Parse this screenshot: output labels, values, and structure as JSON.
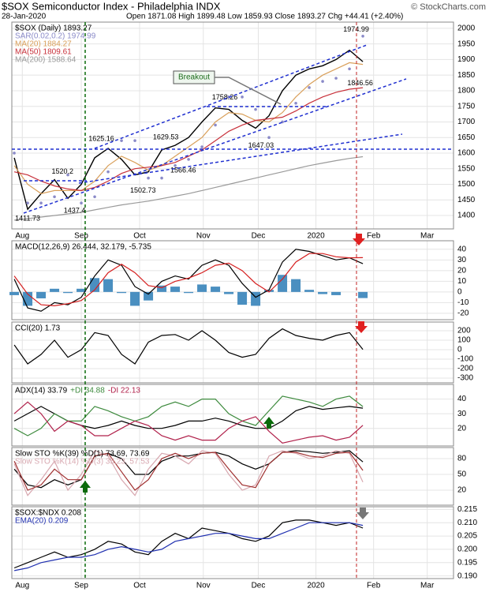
{
  "header": {
    "title": "$SOX Semiconductor Index - Philadelphia INDX",
    "source": "© StockCharts.com",
    "date": "28-Jan-2020",
    "ohlc": "Open 1871.08 High 1899.48 Low 1859.93 Close 1893.27 Chg +44.41 (+2.40%)"
  },
  "breakout": "Breakout",
  "chart_data": [
    {
      "type": "line",
      "legend_layout": "stacked",
      "xlim": [
        -0.18,
        32.76
      ],
      "xticks": [
        {
          "value": 0.6,
          "label": "Aug"
        },
        {
          "value": 5.0,
          "label": "Sep"
        },
        {
          "value": 9.35,
          "label": "Oct"
        },
        {
          "value": 14.1,
          "label": "Nov"
        },
        {
          "value": 18.2,
          "label": "Dec"
        },
        {
          "value": 22.5,
          "label": "2020"
        },
        {
          "value": 26.8,
          "label": "Feb"
        },
        {
          "value": 30.8,
          "label": "Mar"
        }
      ],
      "ylim": [
        1357,
        2020
      ],
      "yticks": [
        1400,
        1450,
        1500,
        1550,
        1600,
        1650,
        1700,
        1750,
        1800,
        1850,
        1900,
        1950,
        2000
      ],
      "series": [
        {
          "name": "$SOX (Daily) 1893.27",
          "color": "#000000",
          "values": [
            1585,
            1420,
            1470,
            1515,
            1455,
            1500,
            1585,
            1615,
            1580,
            1530,
            1540,
            1610,
            1625,
            1650,
            1700,
            1745,
            1740,
            1705,
            1680,
            1720,
            1800,
            1850,
            1870,
            1880,
            1900,
            1930,
            1893.27
          ]
        },
        {
          "name": "SAR(0.02,0.2) 1974.99",
          "type": "dots",
          "color": "#8a8ac8",
          "values": [
            1600,
            1440,
            1440,
            1460,
            1530,
            1440,
            1460,
            1540,
            1640,
            1640,
            1520,
            1520,
            1560,
            1580,
            1620,
            1690,
            1780,
            1780,
            1740,
            1650,
            1700,
            1760,
            1810,
            1830,
            1840,
            1870,
            1974.99
          ]
        },
        {
          "name": "MA(20) 1884.27",
          "color": "#d9a05b",
          "values": [
            1560,
            1500,
            1470,
            1480,
            1480,
            1480,
            1510,
            1560,
            1590,
            1570,
            1545,
            1560,
            1590,
            1620,
            1650,
            1700,
            1730,
            1725,
            1705,
            1700,
            1730,
            1780,
            1820,
            1850,
            1870,
            1890,
            1884.27
          ]
        },
        {
          "name": "MA(50) 1809.61",
          "color": "#c8303a",
          "values": [
            1540,
            1530,
            1510,
            1495,
            1485,
            1480,
            1490,
            1510,
            1535,
            1550,
            1555,
            1560,
            1570,
            1590,
            1610,
            1640,
            1670,
            1690,
            1705,
            1710,
            1715,
            1735,
            1760,
            1780,
            1795,
            1805,
            1809.61
          ]
        },
        {
          "name": "MA(200) 1588.64",
          "color": "#9a9a9a",
          "values": [
            1385,
            1390,
            1395,
            1400,
            1405,
            1410,
            1418,
            1426,
            1434,
            1440,
            1446,
            1454,
            1462,
            1470,
            1480,
            1490,
            1500,
            1510,
            1520,
            1530,
            1540,
            1550,
            1560,
            1568,
            1576,
            1583,
            1588.64
          ]
        }
      ],
      "annotations": [
        {
          "x": 1,
          "value": 1411.73,
          "side": "below"
        },
        {
          "x": 4.5,
          "value": 1437.4,
          "side": "below"
        },
        {
          "x": 3.6,
          "value": 1520.2,
          "side": "above"
        },
        {
          "x": 6.5,
          "value": 1625.16,
          "side": "above"
        },
        {
          "x": 9.6,
          "value": 1502.73,
          "side": "below"
        },
        {
          "x": 11.3,
          "value": 1629.53,
          "side": "above"
        },
        {
          "x": 12.6,
          "value": 1566.46,
          "side": "below"
        },
        {
          "x": 15.7,
          "value": 1758.26,
          "side": "above"
        },
        {
          "x": 18.4,
          "value": 1647.03,
          "side": "below"
        },
        {
          "x": 25.5,
          "value": 1974.99,
          "side": "above"
        },
        {
          "x": 25.8,
          "value": 1846.56,
          "side": "below"
        }
      ]
    },
    {
      "type": "line",
      "title": "MACD(12,26,9) 26.444, 32.179, -5.735",
      "ylim": [
        -26,
        48
      ],
      "yticks": [
        40,
        30,
        20,
        10,
        0,
        -10,
        -20
      ],
      "series": [
        {
          "type": "bar",
          "color": "#4a8fc0",
          "values": [
            -3,
            -13,
            -6,
            3,
            -1,
            3,
            13,
            12,
            -1,
            -13,
            -8,
            6,
            5,
            -1,
            7,
            5,
            -2,
            -12,
            -13,
            2,
            16,
            12,
            2,
            -2,
            -3,
            0,
            -5.735
          ]
        },
        {
          "color": "#000000",
          "values": [
            12,
            -15,
            -18,
            -10,
            -12,
            -5,
            15,
            30,
            25,
            5,
            -2,
            10,
            15,
            12,
            25,
            30,
            25,
            8,
            -5,
            2,
            28,
            40,
            38,
            34,
            30,
            32,
            26.444
          ]
        },
        {
          "color": "#d62020",
          "values": [
            15,
            -2,
            -12,
            -13,
            -11,
            -8,
            2,
            18,
            26,
            18,
            6,
            4,
            10,
            13,
            18,
            25,
            27,
            20,
            8,
            0,
            12,
            28,
            36,
            36,
            33,
            32,
            32.179
          ]
        }
      ]
    },
    {
      "type": "line",
      "title": "CCI(20) 1.73",
      "ylim": [
        -350,
        292
      ],
      "yticks": [
        200,
        100,
        0,
        -100,
        -200,
        -300
      ],
      "series": [
        {
          "color": "#000000",
          "values": [
            50,
            -150,
            -50,
            100,
            -80,
            0,
            180,
            150,
            -50,
            -150,
            80,
            150,
            160,
            100,
            200,
            100,
            -30,
            -80,
            -50,
            120,
            220,
            150,
            120,
            100,
            150,
            180,
            1.73
          ]
        }
      ]
    },
    {
      "type": "line",
      "legend_layout": "inline",
      "ylim": [
        8,
        50
      ],
      "yticks": [
        40,
        30,
        20
      ],
      "series": [
        {
          "name": "ADX(14) 33.79",
          "color": "#000000",
          "values": [
            25,
            30,
            35,
            30,
            25,
            22,
            20,
            22,
            25,
            22,
            20,
            20,
            22,
            25,
            25,
            27,
            25,
            22,
            20,
            20,
            25,
            32,
            35,
            33,
            34,
            35,
            33.79
          ]
        },
        {
          "name": "+DI 34.88",
          "color": "#3d8a3d",
          "values": [
            20,
            15,
            20,
            30,
            25,
            25,
            35,
            32,
            28,
            25,
            28,
            35,
            38,
            35,
            40,
            40,
            30,
            25,
            22,
            32,
            42,
            40,
            38,
            35,
            40,
            42,
            34.88
          ]
        },
        {
          "name": "-DI 22.13",
          "color": "#b0204a",
          "values": [
            30,
            38,
            30,
            18,
            25,
            22,
            15,
            15,
            20,
            25,
            22,
            15,
            12,
            15,
            12,
            12,
            20,
            25,
            28,
            18,
            10,
            12,
            14,
            15,
            12,
            14,
            22.13
          ]
        }
      ]
    },
    {
      "type": "line",
      "legend_layout": "stacked",
      "ylim": [
        -8.5,
        101
      ],
      "yticks": [
        80,
        50,
        20
      ],
      "series": [
        {
          "name": "Slow STO %K(39) %D(1) 73.69, 73.69",
          "color": "#000000",
          "values": [
            60,
            30,
            25,
            40,
            30,
            40,
            85,
            90,
            80,
            50,
            50,
            75,
            85,
            85,
            90,
            92,
            85,
            70,
            60,
            70,
            92,
            95,
            93,
            90,
            92,
            95,
            73.69
          ]
        },
        {
          "name": "Slow STO %K(14) %D(3) 35.23, 57.53",
          "color": "#d8a8b0",
          "values": [
            70,
            10,
            40,
            75,
            20,
            50,
            95,
            85,
            40,
            10,
            60,
            90,
            85,
            70,
            95,
            90,
            50,
            20,
            30,
            85,
            95,
            90,
            80,
            85,
            95,
            90,
            35.23
          ]
        },
        {
          "color": "#a03030",
          "values": [
            75,
            20,
            30,
            60,
            40,
            40,
            85,
            90,
            55,
            20,
            40,
            80,
            90,
            80,
            90,
            92,
            60,
            30,
            25,
            70,
            92,
            92,
            85,
            82,
            90,
            92,
            57.53
          ]
        }
      ]
    },
    {
      "type": "line",
      "legend_layout": "stacked",
      "xticks": [
        {
          "value": 0.6,
          "label": "Aug"
        },
        {
          "value": 5.0,
          "label": "Sep"
        },
        {
          "value": 9.35,
          "label": "Oct"
        },
        {
          "value": 14.1,
          "label": "Nov"
        },
        {
          "value": 18.2,
          "label": "Dec"
        },
        {
          "value": 22.5,
          "label": "2020"
        },
        {
          "value": 26.8,
          "label": "Feb"
        },
        {
          "value": 30.8,
          "label": "Mar"
        }
      ],
      "ylim": [
        0.189,
        0.216
      ],
      "yticks": [
        0.215,
        {
          "value": 0.21,
          "label": "0.210"
        },
        0.205,
        {
          "value": 0.2,
          "label": "0.200"
        },
        0.195,
        {
          "value": 0.19,
          "label": "0.190"
        }
      ],
      "series": [
        {
          "name": "$SOX:$NDX 0.208",
          "color": "#000000",
          "values": [
            0.193,
            0.195,
            0.197,
            0.199,
            0.197,
            0.198,
            0.2,
            0.203,
            0.202,
            0.199,
            0.198,
            0.203,
            0.206,
            0.204,
            0.208,
            0.207,
            0.206,
            0.204,
            0.203,
            0.205,
            0.21,
            0.211,
            0.211,
            0.21,
            0.209,
            0.21,
            0.208
          ]
        },
        {
          "name": "EMA(20) 0.209",
          "color": "#2030b0",
          "values": [
            0.192,
            0.193,
            0.195,
            0.196,
            0.197,
            0.197,
            0.198,
            0.2,
            0.201,
            0.2,
            0.199,
            0.2,
            0.203,
            0.204,
            0.205,
            0.206,
            0.206,
            0.205,
            0.204,
            0.204,
            0.206,
            0.208,
            0.21,
            0.21,
            0.21,
            0.21,
            0.209
          ]
        }
      ]
    }
  ]
}
